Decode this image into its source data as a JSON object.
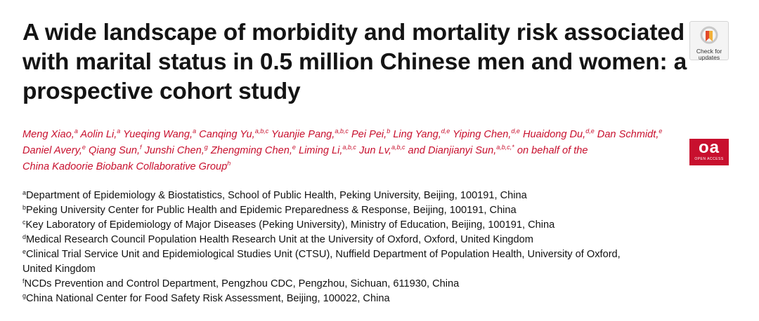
{
  "title_lines": [
    "A wide landscape of morbidity and mortality risk associated",
    "with marital status in 0.5 million Chinese men and women: a",
    "prospective cohort study"
  ],
  "check_updates": {
    "line1": "Check for",
    "line2": "updates"
  },
  "open_access": {
    "mark": "oa",
    "small": "OPEN ACCESS"
  },
  "authors": [
    {
      "name": "Meng Xiao,",
      "sup": "a"
    },
    {
      "name": "Aolin Li,",
      "sup": "a"
    },
    {
      "name": "Yueqing Wang,",
      "sup": "a"
    },
    {
      "name": "Canqing Yu,",
      "sup": "a,b,c"
    },
    {
      "name": "Yuanjie Pang,",
      "sup": "a,b,c"
    },
    {
      "name": "Pei Pei,",
      "sup": "b"
    },
    {
      "name": "Ling Yang,",
      "sup": "d,e"
    },
    {
      "name": "Yiping Chen,",
      "sup": "d,e"
    },
    {
      "name": "Huaidong Du,",
      "sup": "d,e"
    },
    {
      "name": "Dan Schmidt,",
      "sup": "e"
    },
    {
      "name": "Daniel Avery,",
      "sup": "e"
    },
    {
      "name": "Qiang Sun,",
      "sup": "f"
    },
    {
      "name": "Junshi Chen,",
      "sup": "g"
    },
    {
      "name": "Zhengming Chen,",
      "sup": "e"
    },
    {
      "name": "Liming Li,",
      "sup": "a,b,c"
    },
    {
      "name": "Jun Lv,",
      "sup": "a,b,c"
    },
    {
      "name": "and Dianjianyi Sun,",
      "sup": "a,b,c,*"
    },
    {
      "name": "on behalf of the",
      "sup": ""
    },
    {
      "name": "China Kadoorie Biobank Collaborative Group",
      "sup": "h"
    }
  ],
  "affiliations": [
    {
      "sup": "a",
      "text": "Department of Epidemiology & Biostatistics, School of Public Health, Peking University, Beijing, 100191, China"
    },
    {
      "sup": "b",
      "text": "Peking University Center for Public Health and Epidemic Preparedness & Response, Beijing, 100191, China"
    },
    {
      "sup": "c",
      "text": "Key Laboratory of Epidemiology of Major Diseases (Peking University), Ministry of Education, Beijing, 100191, China"
    },
    {
      "sup": "d",
      "text": "Medical Research Council Population Health Research Unit at the University of Oxford, Oxford, United Kingdom"
    },
    {
      "sup": "e",
      "text": "Clinical Trial Service Unit and Epidemiological Studies Unit (CTSU), Nuffield Department of Population Health, University of Oxford,",
      "cont": "United Kingdom"
    },
    {
      "sup": "f",
      "text": "NCDs Prevention and Control Department, Pengzhou CDC, Pengzhou, Sichuan, 611930, China"
    },
    {
      "sup": "g",
      "text": "China National Center for Food Safety Risk Assessment, Beijing, 100022, China"
    }
  ]
}
